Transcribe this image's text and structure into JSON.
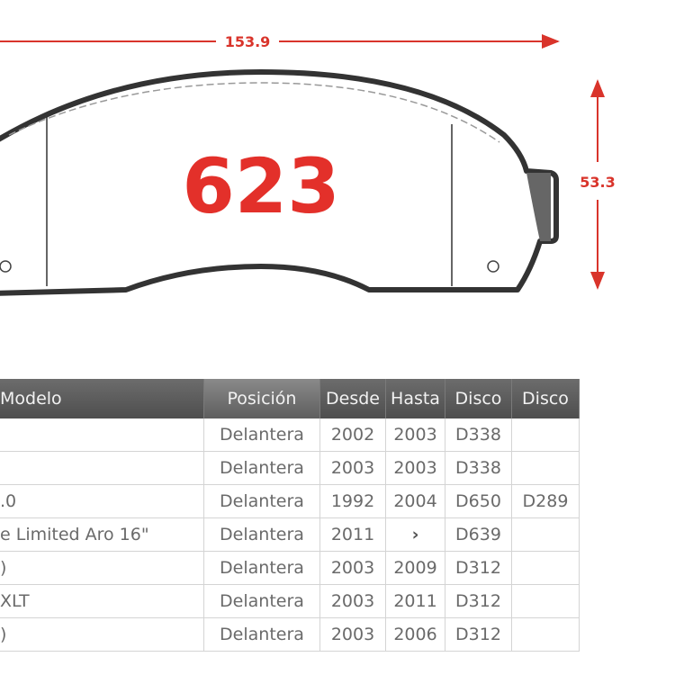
{
  "diagram": {
    "part_code": "623",
    "width_dim": "153.9",
    "height_dim": "53.3",
    "accent_color": "#e3302a"
  },
  "table": {
    "headers": [
      "Modelo",
      "Posición",
      "Desde",
      "Hasta",
      "Disco",
      "Disco"
    ],
    "rows": [
      [
        "",
        "Delantera",
        "2002",
        "2003",
        "D338",
        ""
      ],
      [
        "",
        "Delantera",
        "2003",
        "2003",
        "D338",
        ""
      ],
      [
        ".0",
        "Delantera",
        "1992",
        "2004",
        "D650",
        "D289"
      ],
      [
        "e Limited Aro 16\"",
        "Delantera",
        "2011",
        "›",
        "D639",
        ""
      ],
      [
        ")",
        "Delantera",
        "2003",
        "2009",
        "D312",
        ""
      ],
      [
        "XLT",
        "Delantera",
        "2003",
        "2011",
        "D312",
        ""
      ],
      [
        ")",
        "Delantera",
        "2003",
        "2006",
        "D312",
        ""
      ]
    ]
  }
}
